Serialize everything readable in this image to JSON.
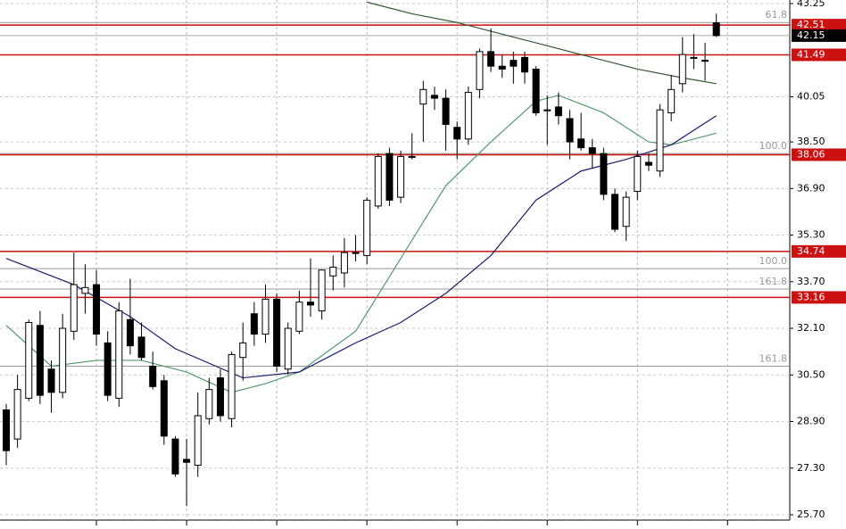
{
  "chart_data": {
    "type": "candlestick",
    "open": [
      29.3,
      28.3,
      29.7,
      32.2,
      30.7,
      29.9,
      32.0,
      33.3,
      33.6,
      31.6,
      29.7,
      32.4,
      31.8,
      30.8,
      30.3,
      28.3,
      27.6,
      27.4,
      29.0,
      30.4,
      29.0,
      31.1,
      32.6,
      31.9,
      33.1,
      30.7,
      32.0,
      33.0,
      32.7,
      33.9,
      34.0,
      34.7,
      34.6,
      36.3,
      38.1,
      36.6,
      38.0,
      39.8,
      40.1,
      40.0,
      39.0,
      38.6,
      40.3,
      41.6,
      41.1,
      41.3,
      41.4,
      41.0,
      39.6,
      39.7,
      39.3,
      38.6,
      38.3,
      38.1,
      36.7,
      35.6,
      36.8,
      37.8,
      37.5,
      39.5,
      40.5,
      41.4,
      41.3,
      42.59
    ],
    "high": [
      29.5,
      30.5,
      32.4,
      32.7,
      31.0,
      32.6,
      34.7,
      34.3,
      34.1,
      32.0,
      33.0,
      33.8,
      32.3,
      31.3,
      30.5,
      28.4,
      28.3,
      29.9,
      30.4,
      30.7,
      31.3,
      32.3,
      33.0,
      33.6,
      33.3,
      32.3,
      33.4,
      34.5,
      34.1,
      34.6,
      35.2,
      35.3,
      36.6,
      38.1,
      38.3,
      38.2,
      38.8,
      40.6,
      40.4,
      40.3,
      39.2,
      40.4,
      41.7,
      42.4,
      41.5,
      41.6,
      41.6,
      41.1,
      40.1,
      40.2,
      39.6,
      39.5,
      38.6,
      38.3,
      36.9,
      36.8,
      38.2,
      38.1,
      39.8,
      40.8,
      42.1,
      42.2,
      41.9,
      42.9
    ],
    "low": [
      27.4,
      28.0,
      29.6,
      29.5,
      29.2,
      29.7,
      31.7,
      32.6,
      31.5,
      29.6,
      29.4,
      31.2,
      31.0,
      30.0,
      28.1,
      27.0,
      26.0,
      27.0,
      28.8,
      28.9,
      28.7,
      30.3,
      31.5,
      31.6,
      30.6,
      30.5,
      31.9,
      32.5,
      32.4,
      33.4,
      33.5,
      34.4,
      34.3,
      36.2,
      36.3,
      36.4,
      37.9,
      38.5,
      39.6,
      38.2,
      37.9,
      38.4,
      40.0,
      40.9,
      40.7,
      40.5,
      40.5,
      39.4,
      38.4,
      39.1,
      37.9,
      38.2,
      37.6,
      36.5,
      35.4,
      35.1,
      36.5,
      37.5,
      37.3,
      39.2,
      40.2,
      41.0,
      40.6,
      42.1
    ],
    "close": [
      27.9,
      30.0,
      32.3,
      29.8,
      29.9,
      32.1,
      33.6,
      33.5,
      31.9,
      29.8,
      32.7,
      31.5,
      31.1,
      30.1,
      28.4,
      27.1,
      27.5,
      29.1,
      30.0,
      29.1,
      31.2,
      31.6,
      31.9,
      33.1,
      30.8,
      32.1,
      33.0,
      32.9,
      34.1,
      34.2,
      34.7,
      34.7,
      36.5,
      38.0,
      36.5,
      38.0,
      38.0,
      40.3,
      40.0,
      39.1,
      38.6,
      40.2,
      41.6,
      41.1,
      41.0,
      41.1,
      40.9,
      39.5,
      39.6,
      39.4,
      38.5,
      38.3,
      38.1,
      36.7,
      35.5,
      36.6,
      38.0,
      37.7,
      39.6,
      40.3,
      41.5,
      41.4,
      41.3,
      42.15
    ],
    "up_color": "#ffffff",
    "down_color": "#000000",
    "series": [
      {
        "color": "#4f9a6c",
        "x": [
          0,
          4,
          8,
          12,
          16,
          20,
          23,
          26,
          31,
          35,
          39,
          43,
          47,
          49,
          53,
          57,
          59,
          63
        ],
        "values": [
          32.2,
          30.8,
          31.0,
          31.0,
          30.6,
          29.9,
          30.2,
          30.6,
          32.0,
          34.5,
          37.0,
          38.5,
          39.9,
          40.1,
          39.5,
          38.5,
          38.4,
          38.8
        ]
      },
      {
        "color": "#1c1c6e",
        "x": [
          0,
          6,
          11,
          15,
          21,
          26,
          31,
          35,
          39,
          43,
          47,
          51,
          55,
          59,
          63
        ],
        "values": [
          34.5,
          33.6,
          32.5,
          31.4,
          30.4,
          30.6,
          31.6,
          32.3,
          33.3,
          34.6,
          36.5,
          37.5,
          37.9,
          38.4,
          39.4
        ]
      },
      {
        "color": "#2f5a2f",
        "x": [
          32,
          36,
          40,
          44,
          48,
          52,
          56,
          60,
          63
        ],
        "values": [
          43.3,
          42.9,
          42.6,
          42.2,
          41.8,
          41.4,
          41.0,
          40.7,
          40.5
        ]
      }
    ],
    "levels": [
      42.51,
      41.49,
      38.06,
      34.74,
      33.16
    ],
    "level_color": "#cc1111",
    "fib_levels": [
      {
        "value": 42.6,
        "label": "61.8"
      },
      {
        "value": 38.1,
        "label": "100.0"
      },
      {
        "value": 34.15,
        "label": "100.0"
      },
      {
        "value": 33.45,
        "label": "161.8"
      },
      {
        "value": 30.8,
        "label": "161.8"
      }
    ],
    "ylim": [
      25.7,
      43.25
    ],
    "yticks": [
      43.25,
      40.05,
      {
        "value": 38.5,
        "label": "38.50"
      },
      {
        "value": 36.9,
        "label": "36.90"
      },
      {
        "value": 35.3,
        "label": "35.30"
      },
      {
        "value": 33.7,
        "label": "33.70"
      },
      {
        "value": 32.1,
        "label": "32.10"
      },
      {
        "value": 30.5,
        "label": "30.50"
      },
      {
        "value": 28.9,
        "label": "28.90"
      },
      {
        "value": 27.3,
        "label": "27.30"
      },
      {
        "value": 25.7,
        "label": "25.70"
      }
    ],
    "grid": true
  }
}
